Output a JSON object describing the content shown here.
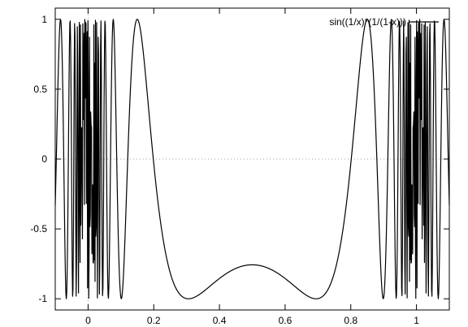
{
  "chart_data": {
    "type": "line",
    "function": "sin((1/x)*(1/(1-x)))",
    "xlim": [
      -0.1,
      1.1
    ],
    "ylim": [
      -1.08,
      1.08
    ],
    "x_ticks": [
      0,
      0.2,
      0.4,
      0.6,
      0.8,
      1
    ],
    "x_tick_labels": [
      "0",
      "0.2",
      "0.4",
      "0.6",
      "0.8",
      "1"
    ],
    "y_ticks": [
      -1,
      -0.5,
      0,
      0.5,
      1
    ],
    "y_tick_labels": [
      "-1",
      "-0.5",
      "0",
      "0.5",
      "1"
    ],
    "zero_axis_lines": true,
    "grid": false,
    "legend_position": "top-right",
    "series": [
      {
        "name": "sin((1/x)*(1/(1-x)))",
        "color": "#000000"
      }
    ]
  }
}
